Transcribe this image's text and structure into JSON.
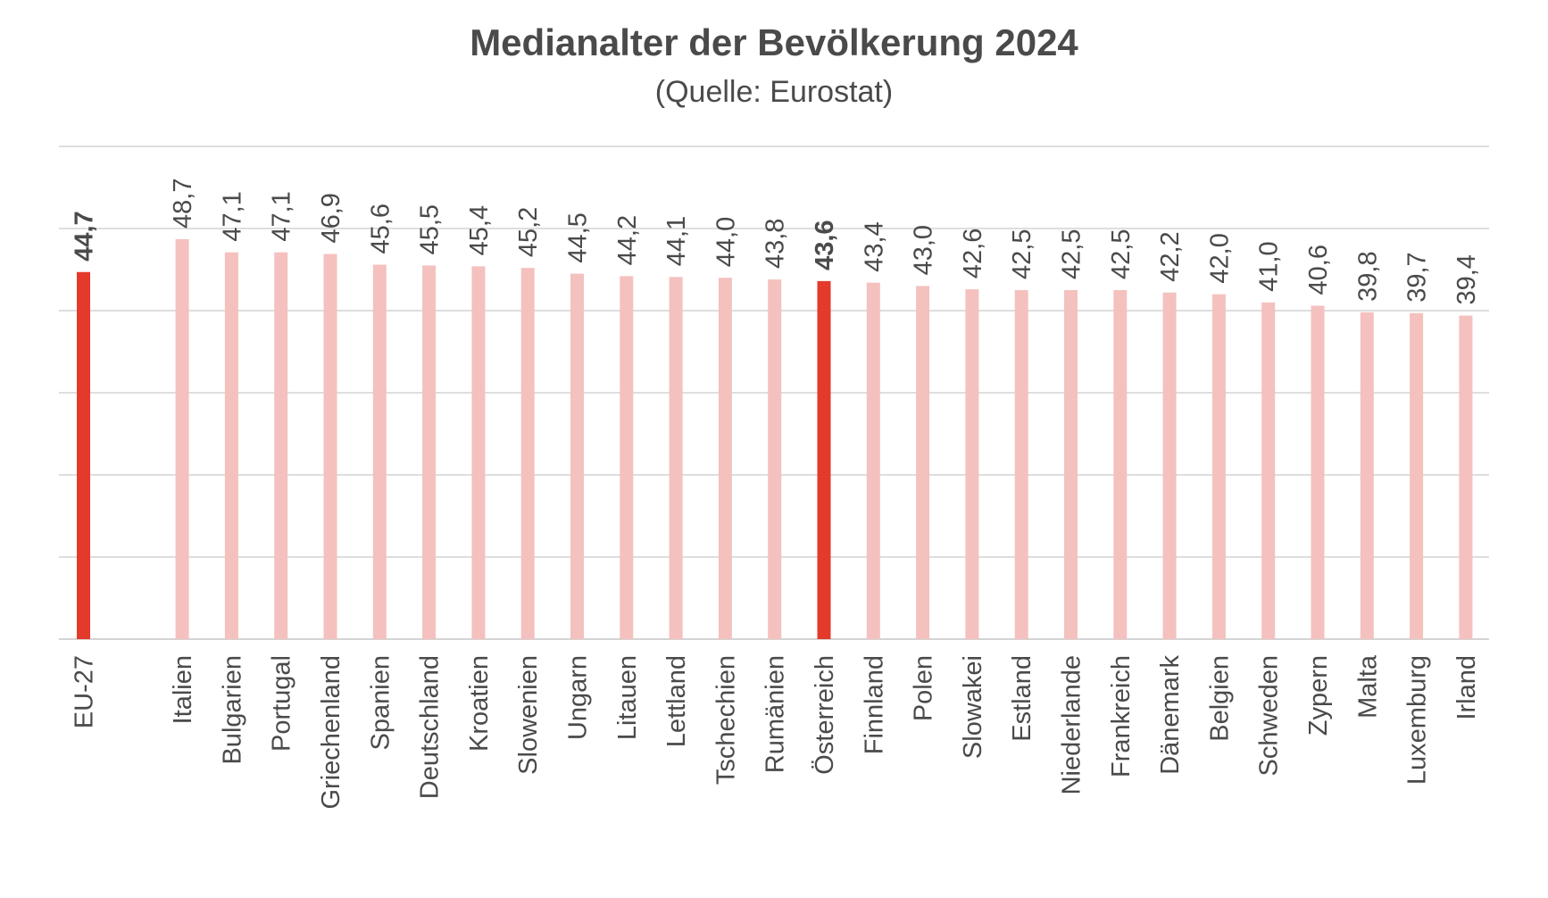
{
  "chart_data": {
    "type": "bar",
    "title": "Medianalter der Bevölkerung 2024",
    "subtitle": "(Quelle: Eurostat)",
    "xlabel": "",
    "ylabel": "",
    "categories": [
      "EU-27",
      "",
      "Italien",
      "Bulgarien",
      "Portugal",
      "Griechenland",
      "Spanien",
      "Deutschland",
      "Kroatien",
      "Slowenien",
      "Ungarn",
      "Litauen",
      "Lettland",
      "Tschechien",
      "Rumänien",
      "Österreich",
      "Finnland",
      "Polen",
      "Slowakei",
      "Estland",
      "Niederlande",
      "Frankreich",
      "Dänemark",
      "Belgien",
      "Schweden",
      "Zypern",
      "Malta",
      "Luxemburg",
      "Irland"
    ],
    "values": [
      44.7,
      null,
      48.7,
      47.1,
      47.1,
      46.9,
      45.6,
      45.5,
      45.4,
      45.2,
      44.5,
      44.2,
      44.1,
      44.0,
      43.8,
      43.6,
      43.4,
      43.0,
      42.6,
      42.5,
      42.5,
      42.5,
      42.2,
      42.0,
      41.0,
      40.6,
      39.8,
      39.7,
      39.4
    ],
    "value_labels": [
      "44,7",
      "",
      "48,7",
      "47,1",
      "47,1",
      "46,9",
      "45,6",
      "45,5",
      "45,4",
      "45,2",
      "44,5",
      "44,2",
      "44,1",
      "44,0",
      "43,8",
      "43,6",
      "43,4",
      "43,0",
      "42,6",
      "42,5",
      "42,5",
      "42,5",
      "42,2",
      "42,0",
      "41,0",
      "40,6",
      "39,8",
      "39,7",
      "39,4"
    ],
    "highlighted": [
      "EU-27",
      "Österreich"
    ],
    "ylim": [
      0,
      60
    ],
    "gridlines": [
      0,
      10,
      20,
      30,
      40,
      50,
      60
    ],
    "grid": true,
    "legend": "none",
    "colors": {
      "highlight": "#e33a2c",
      "default": "#f4c1be",
      "grid": "#d4d4d4",
      "text": "#4a4a4a"
    }
  }
}
